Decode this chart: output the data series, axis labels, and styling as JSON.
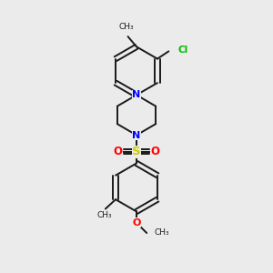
{
  "background_color": "#ebebeb",
  "bond_color": "#1a1a1a",
  "N_color": "#0000ff",
  "O_color": "#ff0000",
  "S_color": "#cccc00",
  "Cl_color": "#00bb00",
  "figsize": [
    3.0,
    3.0
  ],
  "dpi": 100,
  "xlim": [
    0,
    10
  ],
  "ylim": [
    0,
    10
  ]
}
